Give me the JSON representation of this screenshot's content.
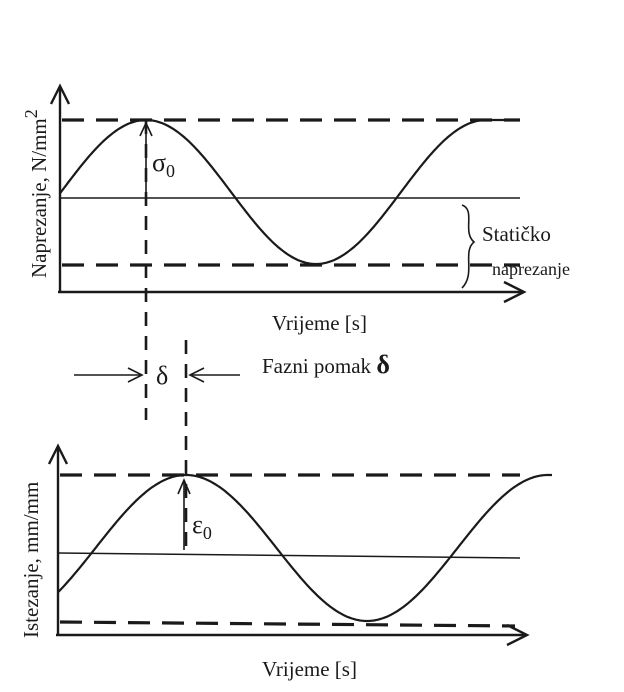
{
  "top_chart": {
    "ylabel": "Naprezanje, N/mm",
    "ylabel_sup": "2",
    "xlabel": "Vrijeme [s]",
    "amplitude_symbol": "σ",
    "amplitude_sub": "0",
    "static_label_line1": "Statičko",
    "static_label_line2": "naprezanje"
  },
  "phase": {
    "delta_symbol": "δ",
    "label": "Fazni pomak",
    "label_symbol": "δ"
  },
  "bottom_chart": {
    "ylabel": "Istezanje, mm/mm",
    "xlabel": "Vrijeme [s]",
    "amplitude_symbol": "ε",
    "amplitude_sub": "0"
  }
}
